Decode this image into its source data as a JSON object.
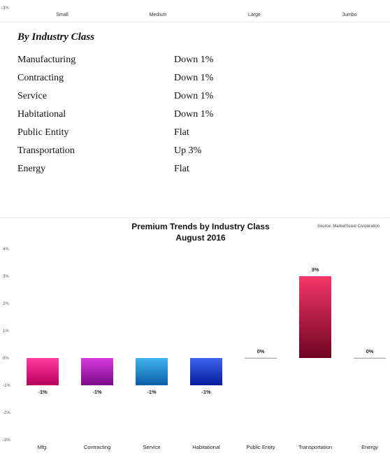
{
  "top_strip": {
    "tick_label": "-3%",
    "categories": [
      "Small",
      "Medium",
      "Large",
      "Jumbo"
    ]
  },
  "industry_table": {
    "title": "By Industry Class",
    "rows": [
      {
        "label": "Manufacturing",
        "value": "Down 1%"
      },
      {
        "label": "Contracting",
        "value": "Down 1%"
      },
      {
        "label": "Service",
        "value": "Down 1%"
      },
      {
        "label": "Habitational",
        "value": "Down 1%"
      },
      {
        "label": "Public Entity",
        "value": "Flat"
      },
      {
        "label": "Transportation",
        "value": "Up 3%"
      },
      {
        "label": "Energy",
        "value": "Flat"
      }
    ]
  },
  "chart_data": {
    "type": "bar",
    "title": "Premium Trends by Industry Class",
    "subtitle": "August 2016",
    "source": "Source: MarketScout Corporation",
    "categories": [
      "Mfg.",
      "Contracting",
      "Service",
      "Habitational",
      "Public Entity",
      "Transportation",
      "Energy"
    ],
    "values": [
      -1,
      -1,
      -1,
      -1,
      0,
      3,
      0
    ],
    "data_labels": [
      "-1%",
      "-1%",
      "-1%",
      "-1%",
      "0%",
      "3%",
      "0%"
    ],
    "colors": [
      [
        "#ff3d9e",
        "#b8005e"
      ],
      [
        "#d63be0",
        "#7a0a86"
      ],
      [
        "#3fb4ee",
        "#0b5ea8"
      ],
      [
        "#3d64f0",
        "#061c9c"
      ],
      [
        "#cccccc",
        "#999999"
      ],
      [
        "#f5376a",
        "#6e0420"
      ],
      [
        "#cccccc",
        "#999999"
      ]
    ],
    "ylim": [
      -3,
      4
    ],
    "yticks": [
      4,
      3,
      2,
      1,
      0,
      -1,
      -2,
      -3
    ],
    "ytick_labels": [
      "4%",
      "3%",
      "2%",
      "1%",
      "0%",
      "-1%",
      "-2%",
      "-3%"
    ],
    "grid": false
  }
}
